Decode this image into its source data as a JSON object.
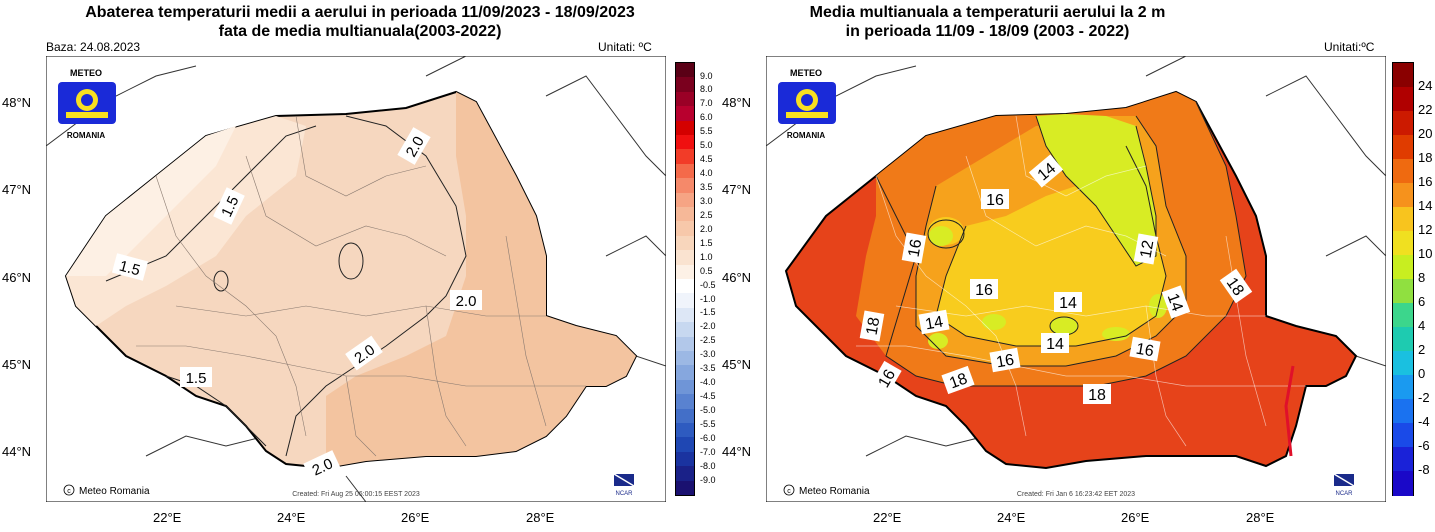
{
  "left": {
    "title_line1": "Abaterea temperaturii medii a aerului in perioada 11/09/2023 - 18/09/2023",
    "title_line2": "fata de media multianuala(2003-2022)",
    "base": "Baza: 24.08.2023",
    "units": "Unitati: ºC",
    "created": "Created: Fri Aug 25 06:00:15 EEST 2023",
    "copyright": "Meteo Romania",
    "logo_top": "METEO",
    "logo_bottom": "ROMANIA",
    "ncar": "NCAR",
    "contour_labels": [
      "2.0",
      "1.5",
      "1.5",
      "2.0",
      "2.0",
      "1.5",
      "2.0"
    ],
    "colorbar_labels": [
      "9.0",
      "8.0",
      "7.0",
      "6.0",
      "5.5",
      "5.0",
      "4.5",
      "4.0",
      "3.5",
      "3.0",
      "2.5",
      "2.0",
      "1.5",
      "1.0",
      "0.5",
      "-0.5",
      "-1.0",
      "-1.5",
      "-2.0",
      "-2.5",
      "-3.0",
      "-3.5",
      "-4.0",
      "-4.5",
      "-5.0",
      "-5.5",
      "-6.0",
      "-7.0",
      "-8.0",
      "-9.0"
    ],
    "colorbar_colors": [
      "#5a0016",
      "#7a001e",
      "#9a0026",
      "#b8002e",
      "#d40000",
      "#f01010",
      "#f23c28",
      "#f46a4a",
      "#f5896a",
      "#f6a484",
      "#f6b898",
      "#f7c8aa",
      "#f8d6bc",
      "#fae3d0",
      "#fdf1e6",
      "#ffffff",
      "#f0f4fb",
      "#dde7f6",
      "#c7d8f0",
      "#b2c8ea",
      "#9cb8e4",
      "#86a7de",
      "#6f95d7",
      "#5982d0",
      "#436fc8",
      "#2e5bc0",
      "#1f47b3",
      "#1a33a0",
      "#1a2188",
      "#1a1170"
    ],
    "lat_labels": [
      "48°N",
      "47°N",
      "46°N",
      "45°N",
      "44°N"
    ],
    "lon_labels": [
      "22°E",
      "24°E",
      "26°E",
      "28°E"
    ]
  },
  "right": {
    "title_line1": "Media multianuala a temperaturii aerului la 2 m",
    "title_line2": "in perioada 11/09 - 18/09 (2003 - 2022)",
    "units": "Unitati:ºC",
    "created": "Created: Fri Jan  6 16:23:42 EET 2023",
    "copyright": "Meteo Romania",
    "logo_top": "METEO",
    "logo_bottom": "ROMANIA",
    "ncar": "NCAR",
    "contour_labels": [
      "14",
      "16",
      "16",
      "12",
      "16",
      "14",
      "14",
      "14",
      "14",
      "18",
      "18",
      "16",
      "16",
      "18",
      "16",
      "18"
    ],
    "colorbar_labels": [
      "24",
      "22",
      "20",
      "18",
      "16",
      "14",
      "12",
      "10",
      "8",
      "6",
      "4",
      "2",
      "0",
      "-2",
      "-4",
      "-6",
      "-8"
    ],
    "colorbar_colors": [
      "#8a0000",
      "#b00000",
      "#cc1a00",
      "#e03c00",
      "#ef6a10",
      "#f6921c",
      "#f8c41e",
      "#f0e020",
      "#c8ee20",
      "#90e040",
      "#3cd68c",
      "#1ecbb0",
      "#1ac0e0",
      "#1a9af0",
      "#1a72f0",
      "#1a4ae8",
      "#1a22d8",
      "#1a08c8"
    ],
    "lat_labels": [
      "48°N",
      "47°N",
      "46°N",
      "45°N",
      "44°N"
    ],
    "lon_labels": [
      "22°E",
      "24°E",
      "26°E",
      "28°E"
    ]
  }
}
